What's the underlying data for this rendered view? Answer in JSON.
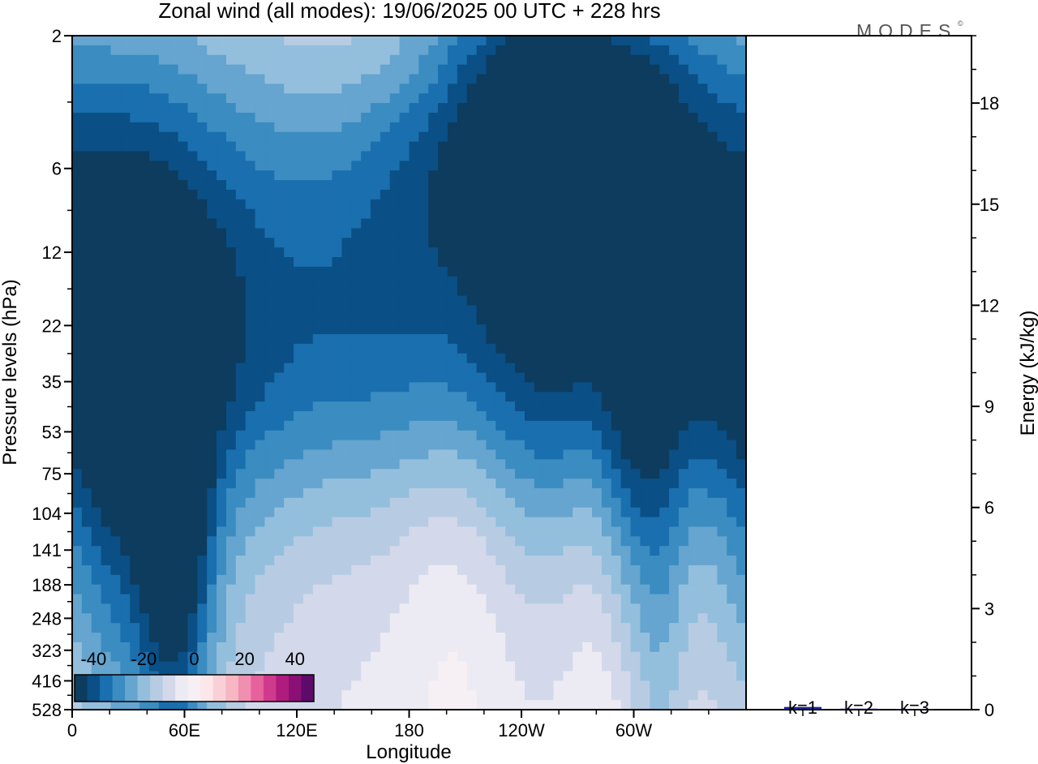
{
  "chart_data": [
    {
      "type": "heatmap",
      "title": "Zonal wind (all modes):  19/06/2025  00 UTC  + 228 hrs",
      "xlabel": "Longitude",
      "ylabel": "Pressure levels (hPa)",
      "x_ticks": [
        "0",
        "60E",
        "120E",
        "180",
        "120W",
        "60W"
      ],
      "y_ticks": [
        "2",
        "6",
        "12",
        "22",
        "35",
        "53",
        "75",
        "104",
        "141",
        "188",
        "248",
        "323",
        "416",
        "528"
      ],
      "colorbar": {
        "labels": [
          "-40",
          "-20",
          "0",
          "20",
          "40"
        ],
        "colors": [
          "#0d3c5e",
          "#0a4f86",
          "#1a6fae",
          "#3a8cc1",
          "#65a5cf",
          "#93bfdd",
          "#b7cce3",
          "#d3d9ea",
          "#ecebf3",
          "#f6f0f5",
          "#fbe6ea",
          "#f8d0d6",
          "#f6b6c3",
          "#f08fb0",
          "#e6629d",
          "#d03a8c",
          "#b01b7e",
          "#8a1075",
          "#5e0a6b"
        ]
      },
      "fields": [
        {
          "x": 180,
          "y": 2.6,
          "value": 8,
          "sx": 45,
          "sy": 0.1
        },
        {
          "x": 250,
          "y": 3.2,
          "value": -28,
          "sx": 55,
          "sy": 0.16
        },
        {
          "x": 180,
          "y": 11,
          "value": -22,
          "sx": 200,
          "sy": 0.3
        },
        {
          "x": 300,
          "y": 12,
          "value": -16,
          "sx": 70,
          "sy": 0.28
        },
        {
          "x": 30,
          "y": 11,
          "value": -10,
          "sx": 40,
          "sy": 0.25
        },
        {
          "x": 180,
          "y": 20,
          "value": -12,
          "sx": 220,
          "sy": 0.3
        },
        {
          "x": 180,
          "y": 35,
          "value": -8,
          "sx": 300,
          "sy": 0.15
        },
        {
          "x": 55,
          "y": 140,
          "value": -28,
          "sx": 14,
          "sy": 0.22
        },
        {
          "x": 20,
          "y": 110,
          "value": -12,
          "sx": 22,
          "sy": 0.25
        },
        {
          "x": 45,
          "y": 180,
          "value": -10,
          "sx": 40,
          "sy": 0.45
        },
        {
          "x": 300,
          "y": 80,
          "value": -10,
          "sx": 14,
          "sy": 0.2
        },
        {
          "x": 170,
          "y": 85,
          "value": 6,
          "sx": 55,
          "sy": 0.25
        },
        {
          "x": 205,
          "y": 160,
          "value": 7,
          "sx": 22,
          "sy": 0.4
        },
        {
          "x": 280,
          "y": 170,
          "value": 6,
          "sx": 14,
          "sy": 0.45
        },
        {
          "x": 315,
          "y": 380,
          "value": -8,
          "sx": 10,
          "sy": 0.3
        },
        {
          "x": 180,
          "y": 480,
          "value": -6,
          "sx": 200,
          "sy": 0.25
        }
      ]
    },
    {
      "type": "bar",
      "ylabel": "Energy (kJ/kg)",
      "categories": [
        "k=1",
        "k=2",
        "k=3"
      ],
      "values": [
        0.08,
        0.03,
        0.02
      ],
      "ylim": [
        0,
        20
      ],
      "y_ticks": [
        "0",
        "3",
        "6",
        "9",
        "12",
        "15",
        "18"
      ],
      "bar_color": "#1f1f8f"
    }
  ],
  "logo": {
    "text": "MODES",
    "mark": "©"
  }
}
